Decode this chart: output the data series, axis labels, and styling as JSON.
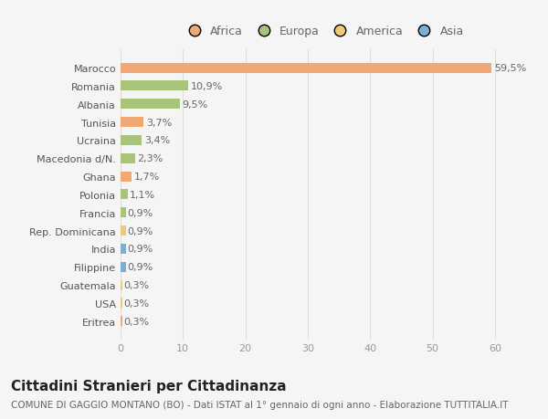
{
  "countries": [
    "Eritrea",
    "USA",
    "Guatemala",
    "Filippine",
    "India",
    "Rep. Dominicana",
    "Francia",
    "Polonia",
    "Ghana",
    "Macedonia d/N.",
    "Ucraina",
    "Tunisia",
    "Albania",
    "Romania",
    "Marocco"
  ],
  "values": [
    0.3,
    0.3,
    0.3,
    0.9,
    0.9,
    0.9,
    0.9,
    1.1,
    1.7,
    2.3,
    3.4,
    3.7,
    9.5,
    10.9,
    59.5
  ],
  "labels": [
    "0,3%",
    "0,3%",
    "0,3%",
    "0,9%",
    "0,9%",
    "0,9%",
    "0,9%",
    "1,1%",
    "1,7%",
    "2,3%",
    "3,4%",
    "3,7%",
    "9,5%",
    "10,9%",
    "59,5%"
  ],
  "colors": [
    "#f0a875",
    "#f0c87a",
    "#f0c87a",
    "#7bafd4",
    "#7bafd4",
    "#f0c87a",
    "#a8c47a",
    "#a8c47a",
    "#f0a875",
    "#a8c47a",
    "#a8c47a",
    "#f0a875",
    "#a8c47a",
    "#a8c47a",
    "#f0a875"
  ],
  "legend_labels": [
    "Africa",
    "Europa",
    "America",
    "Asia"
  ],
  "legend_colors": [
    "#f0a875",
    "#a8c47a",
    "#f0c87a",
    "#7bafd4"
  ],
  "title": "Cittadini Stranieri per Cittadinanza",
  "subtitle": "COMUNE DI GAGGIO MONTANO (BO) - Dati ISTAT al 1° gennaio di ogni anno - Elaborazione TUTTITALIA.IT",
  "xlim": [
    0,
    65
  ],
  "xticks": [
    0,
    10,
    20,
    30,
    40,
    50,
    60
  ],
  "background_color": "#f5f5f5",
  "bar_height": 0.55,
  "title_fontsize": 11,
  "subtitle_fontsize": 7.5,
  "label_fontsize": 8,
  "tick_fontsize": 8,
  "legend_fontsize": 9
}
